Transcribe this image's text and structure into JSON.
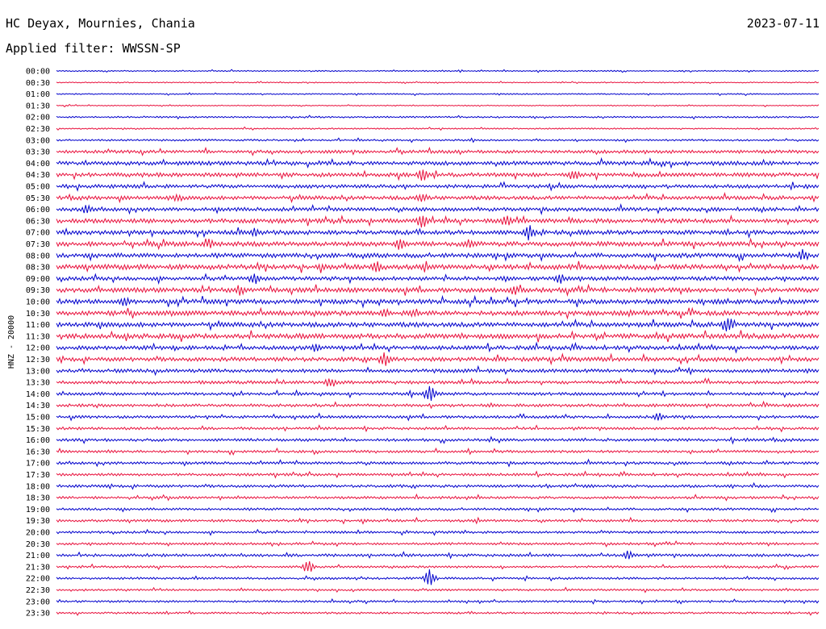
{
  "header": {
    "station": "HC Deyax, Mournies, Chania",
    "date": "2023-07-11",
    "filter": "Applied filter: WWSSN-SP"
  },
  "channel_label": "HNZ - 20000",
  "colors": {
    "even_trace": "#0000cc",
    "odd_trace": "#e8103c",
    "text": "#000000"
  },
  "chart_data": {
    "type": "line",
    "title": "HC Deyax, Mournies, Chania",
    "date": "2023-07-11",
    "ylabel": "HNZ - 20000",
    "row_labels": [
      "00:00",
      "00:30",
      "01:00",
      "01:30",
      "02:00",
      "02:30",
      "03:00",
      "03:30",
      "04:00",
      "04:30",
      "05:00",
      "05:30",
      "06:00",
      "06:30",
      "07:00",
      "07:30",
      "08:00",
      "08:30",
      "09:00",
      "09:30",
      "10:00",
      "10:30",
      "11:00",
      "11:30",
      "12:00",
      "12:30",
      "13:00",
      "13:30",
      "14:00",
      "14:30",
      "15:00",
      "15:30",
      "16:00",
      "16:30",
      "17:00",
      "17:30",
      "18:00",
      "18:30",
      "19:00",
      "19:30",
      "20:00",
      "20:30",
      "21:00",
      "21:30",
      "22:00",
      "22:30",
      "23:00",
      "23:30"
    ],
    "row_activity": [
      0.6,
      0.5,
      0.6,
      0.5,
      0.8,
      0.7,
      0.9,
      1.6,
      2.0,
      2.0,
      1.8,
      1.9,
      1.9,
      2.2,
      2.2,
      2.4,
      2.2,
      2.6,
      2.0,
      2.3,
      2.3,
      2.4,
      2.3,
      2.5,
      2.0,
      2.1,
      1.8,
      1.6,
      1.5,
      1.5,
      1.4,
      1.3,
      1.4,
      1.3,
      1.4,
      1.3,
      1.4,
      1.3,
      1.2,
      1.3,
      1.2,
      1.2,
      1.4,
      1.1,
      1.1,
      1.0,
      1.0,
      1.0
    ],
    "events": [
      {
        "row": 9,
        "t": 0.48,
        "amp": 9
      },
      {
        "row": 9,
        "t": 0.68,
        "amp": 7
      },
      {
        "row": 11,
        "t": 0.48,
        "amp": 8
      },
      {
        "row": 11,
        "t": 0.16,
        "amp": 6
      },
      {
        "row": 12,
        "t": 0.04,
        "amp": 7
      },
      {
        "row": 13,
        "t": 0.48,
        "amp": 10
      },
      {
        "row": 13,
        "t": 0.59,
        "amp": 8
      },
      {
        "row": 14,
        "t": 0.62,
        "amp": 11
      },
      {
        "row": 14,
        "t": 0.26,
        "amp": 6
      },
      {
        "row": 15,
        "t": 0.45,
        "amp": 9
      },
      {
        "row": 15,
        "t": 0.2,
        "amp": 7
      },
      {
        "row": 15,
        "t": 0.54,
        "amp": 7
      },
      {
        "row": 16,
        "t": 0.98,
        "amp": 9
      },
      {
        "row": 17,
        "t": 0.42,
        "amp": 8
      },
      {
        "row": 18,
        "t": 0.26,
        "amp": 9
      },
      {
        "row": 18,
        "t": 0.66,
        "amp": 8
      },
      {
        "row": 19,
        "t": 0.24,
        "amp": 8
      },
      {
        "row": 19,
        "t": 0.6,
        "amp": 7
      },
      {
        "row": 20,
        "t": 0.09,
        "amp": 7
      },
      {
        "row": 21,
        "t": 0.43,
        "amp": 7
      },
      {
        "row": 21,
        "t": 0.47,
        "amp": 7
      },
      {
        "row": 22,
        "t": 0.88,
        "amp": 13
      },
      {
        "row": 24,
        "t": 0.34,
        "amp": 6
      },
      {
        "row": 25,
        "t": 0.43,
        "amp": 10
      },
      {
        "row": 27,
        "t": 0.36,
        "amp": 8
      },
      {
        "row": 28,
        "t": 0.49,
        "amp": 12
      },
      {
        "row": 30,
        "t": 0.79,
        "amp": 6
      },
      {
        "row": 42,
        "t": 0.75,
        "amp": 7
      },
      {
        "row": 43,
        "t": 0.33,
        "amp": 9
      },
      {
        "row": 44,
        "t": 0.49,
        "amp": 12
      }
    ],
    "grid": false
  }
}
